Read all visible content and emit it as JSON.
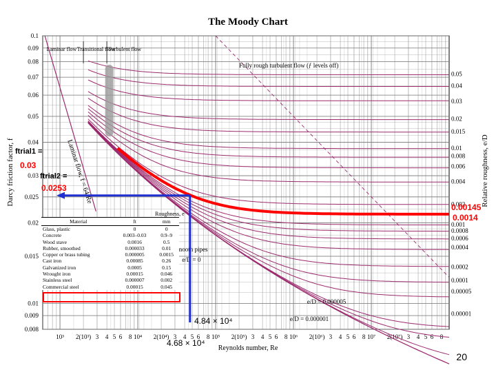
{
  "chart_data": {
    "type": "line",
    "title": "The Moody Chart",
    "xlabel": "Reynolds number, Re",
    "ylabel": "Darcy friction factor, f",
    "ylabel_right": "Relative roughness, e/D",
    "x_scale": "log",
    "y_scale": "log",
    "xlim": [
      600,
      100000000
    ],
    "ylim": [
      0.008,
      0.1
    ],
    "y_ticks": [
      "0.1",
      "0.09",
      "0.08",
      "0.07",
      "0.06",
      "0.05",
      "0.04",
      "0.03",
      "0.025",
      "0.02",
      "0.015",
      "0.01",
      "0.009",
      "0.008"
    ],
    "y_tick_values": [
      0.1,
      0.09,
      0.08,
      0.07,
      0.06,
      0.05,
      0.04,
      0.03,
      0.025,
      0.02,
      0.015,
      0.01,
      0.009,
      0.008
    ],
    "x_tick_labels": [
      {
        "x": 1000,
        "t": "10³"
      },
      {
        "x": 2000,
        "t": "2(10³)"
      },
      {
        "x": 3000,
        "t": "3"
      },
      {
        "x": 4000,
        "t": "4"
      },
      {
        "x": 5000,
        "t": "5"
      },
      {
        "x": 6000,
        "t": "6"
      },
      {
        "x": 8000,
        "t": "8"
      },
      {
        "x": 10000,
        "t": "10⁴"
      },
      {
        "x": 20000,
        "t": "2(10⁴)"
      },
      {
        "x": 30000,
        "t": "3"
      },
      {
        "x": 40000,
        "t": "4"
      },
      {
        "x": 50000,
        "t": "5"
      },
      {
        "x": 60000,
        "t": "6"
      },
      {
        "x": 80000,
        "t": "8"
      },
      {
        "x": 100000,
        "t": "10⁵"
      },
      {
        "x": 200000,
        "t": "2(10⁵)"
      },
      {
        "x": 300000,
        "t": "3"
      },
      {
        "x": 400000,
        "t": "4"
      },
      {
        "x": 500000,
        "t": "5"
      },
      {
        "x": 600000,
        "t": "6"
      },
      {
        "x": 800000,
        "t": "8"
      },
      {
        "x": 1000000,
        "t": "10⁶"
      },
      {
        "x": 2000000,
        "t": "2(10⁶)"
      },
      {
        "x": 3000000,
        "t": "3"
      },
      {
        "x": 4000000,
        "t": "4"
      },
      {
        "x": 5000000,
        "t": "5"
      },
      {
        "x": 6000000,
        "t": "6"
      },
      {
        "x": 8000000,
        "t": "8"
      },
      {
        "x": 10000000,
        "t": "10⁷"
      },
      {
        "x": 20000000,
        "t": "2(10⁷)"
      },
      {
        "x": 30000000,
        "t": "3"
      },
      {
        "x": 40000000,
        "t": "4"
      },
      {
        "x": 50000000,
        "t": "5"
      },
      {
        "x": 60000000,
        "t": "6"
      },
      {
        "x": 80000000,
        "t": "8"
      }
    ],
    "roughness_curves": [
      0.05,
      0.04,
      0.03,
      0.02,
      0.015,
      0.01,
      0.008,
      0.006,
      0.004,
      0.002,
      0.001,
      0.0008,
      0.0006,
      0.0004,
      0.0002,
      0.0001,
      5e-05,
      1e-05,
      5e-06,
      1e-06
    ],
    "right_labels": [
      "0.05",
      "0.04",
      "0.03",
      "0.02",
      "0.015",
      "0.01",
      "0.008",
      "0.006",
      "0.004",
      "0.002",
      "0.001",
      "0.0008",
      "0.0006",
      "0.0004",
      "0.0002",
      "0.0001",
      "0.00005",
      "0.00001"
    ],
    "right_label_f": [
      0.072,
      0.065,
      0.057,
      0.049,
      0.0438,
      0.038,
      0.0355,
      0.0325,
      0.0285,
      0.0235,
      0.0197,
      0.0187,
      0.0175,
      0.0162,
      0.0137,
      0.0122,
      0.0111,
      0.00915
    ],
    "region_labels": {
      "laminar": "Laminar flow",
      "transitional": "Transitional flow",
      "turbulent": "Turbulent flow",
      "fully_rough": "Fully rough turbulent flow (ƒ levels off)"
    },
    "laminar_label": "Laminar flow, f = 64/Re",
    "smooth_label": "Smooth pipes",
    "smooth_ed": "e/D = 0",
    "curve_labels": [
      "e/D = 0.000005",
      "e/D = 0.000001"
    ],
    "highlight_ed": 0.00145,
    "marker_re": 46800,
    "marker_f": 0.0253
  },
  "annotations": {
    "ftrial1": "ftrial1 =",
    "ftrial1_value": "0.03",
    "ftrial2": "ftrial2 =",
    "ftrial2_value": "0.0253",
    "ed_a": "0.00145",
    "ed_b": "0.0014",
    "re_1": "4.84 × 10⁴",
    "re_2": "4.68 × 10⁴"
  },
  "roughness_table": {
    "title": "Roughness, e",
    "headers": [
      "Material",
      "ft",
      "mm"
    ],
    "rows": [
      [
        "Glass, plastic",
        "0",
        "0"
      ],
      [
        "Concrete",
        "0.003–0.03",
        "0.9–9"
      ],
      [
        "Wood stave",
        "0.0016",
        "0.5"
      ],
      [
        "Rubber, smoothed",
        "0.000033",
        "0.01"
      ],
      [
        "Copper or brass tubing",
        "0.000005",
        "0.0015"
      ],
      [
        "Cast iron",
        "0.00085",
        "0.26"
      ],
      [
        "Galvanized iron",
        "0.0005",
        "0.15"
      ],
      [
        "Wrought iron",
        "0.00015",
        "0.046"
      ],
      [
        "Stainless steel",
        "0.000007",
        "0.002"
      ],
      [
        "Commercial steel",
        "0.00015",
        "0.045"
      ]
    ]
  },
  "slide_number": "20",
  "colors": {
    "curve": "#9c2a6e",
    "grid": "#777777",
    "red": "#ff0000",
    "blue": "#1f2fd0"
  }
}
